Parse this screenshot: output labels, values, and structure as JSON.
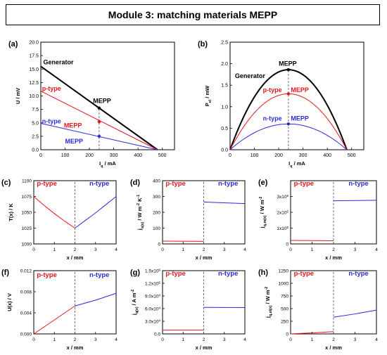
{
  "header": {
    "title": "Module 3: matching materials MEPP"
  },
  "colors": {
    "generator": "#000000",
    "p": "#e8141c",
    "n": "#2b2bd6"
  },
  "chart_data": [
    {
      "id": "a",
      "panel": "(a)",
      "type": "line",
      "xlabel": "I_q / mA",
      "ylabel": "U / mV",
      "xlim": [
        0,
        550
      ],
      "ylim": [
        0,
        20
      ],
      "xticks": [
        0,
        100,
        200,
        300,
        400,
        500
      ],
      "yticks": [
        0.0,
        2.5,
        5.0,
        7.5,
        10.0,
        12.5,
        15.0,
        17.5,
        20.0
      ],
      "ytick_labels": [
        "0.0",
        "2.5",
        "5.0",
        "7.5",
        "10.0",
        "12.5",
        "15.0",
        "17.5",
        "20.0"
      ],
      "series": [
        {
          "name": "Generator",
          "color": "generator",
          "x": [
            0,
            480
          ],
          "y": [
            15.5,
            0
          ],
          "width": 2
        },
        {
          "name": "p-type",
          "color": "p",
          "x": [
            0,
            480
          ],
          "y": [
            10.9,
            0
          ],
          "width": 1
        },
        {
          "name": "n-type",
          "color": "n",
          "x": [
            0,
            480
          ],
          "y": [
            4.9,
            0
          ],
          "width": 1
        }
      ],
      "points": [
        {
          "x": 240,
          "y": 7.75,
          "color": "generator"
        },
        {
          "x": 240,
          "y": 5.2,
          "color": "p"
        },
        {
          "x": 240,
          "y": 2.5,
          "color": "n"
        }
      ],
      "vline": {
        "x": 240,
        "y0": 0,
        "y1": 7.75
      },
      "labels": [
        {
          "text": "Generator",
          "x": 10,
          "y": 15.9,
          "color": "generator",
          "bold": true
        },
        {
          "text": "MEPP",
          "x": 215,
          "y": 8.7,
          "color": "generator",
          "bold": true
        },
        {
          "text": "p-type",
          "x": 5,
          "y": 11.0,
          "color": "p",
          "bold": true
        },
        {
          "text": "MEPP",
          "x": 95,
          "y": 4.1,
          "color": "p",
          "bold": true
        },
        {
          "text": "n-type",
          "x": 5,
          "y": 4.9,
          "color": "n",
          "bold": true
        },
        {
          "text": "MEPP",
          "x": 100,
          "y": 1.2,
          "color": "n",
          "bold": true
        }
      ]
    },
    {
      "id": "b",
      "panel": "(b)",
      "type": "line",
      "xlabel": "I_q / mA",
      "ylabel": "P_el / mW",
      "xlim": [
        0,
        550
      ],
      "ylim": [
        0,
        2.5
      ],
      "xticks": [
        0,
        100,
        200,
        300,
        400,
        500
      ],
      "yticks": [
        0.0,
        0.5,
        1.0,
        1.5,
        2.0,
        2.5
      ],
      "ytick_labels": [
        "0.0",
        "0.5",
        "1.0",
        "1.5",
        "2.0",
        "2.5"
      ],
      "series": [
        {
          "name": "Generator",
          "color": "generator",
          "parabola": {
            "x0": 0,
            "x1": 480,
            "peak": 1.86
          },
          "width": 2
        },
        {
          "name": "p-type",
          "color": "p",
          "parabola": {
            "x0": 0,
            "x1": 480,
            "peak": 1.3
          },
          "width": 1
        },
        {
          "name": "n-type",
          "color": "n",
          "parabola": {
            "x0": 0,
            "x1": 480,
            "peak": 0.6
          },
          "width": 1
        }
      ],
      "points": [
        {
          "x": 240,
          "y": 1.86,
          "color": "generator"
        },
        {
          "x": 240,
          "y": 1.3,
          "color": "p"
        },
        {
          "x": 240,
          "y": 0.6,
          "color": "n"
        }
      ],
      "vline": {
        "x": 240,
        "y0": 0,
        "y1": 1.86
      },
      "labels": [
        {
          "text": "MEPP",
          "x": 200,
          "y": 1.95,
          "color": "generator",
          "bold": true
        },
        {
          "text": "Generator",
          "x": 20,
          "y": 1.67,
          "color": "generator",
          "bold": true
        },
        {
          "text": "p-type",
          "x": 135,
          "y": 1.34,
          "color": "p",
          "bold": true
        },
        {
          "text": "MEPP",
          "x": 250,
          "y": 1.34,
          "color": "p",
          "bold": true
        },
        {
          "text": "n-type",
          "x": 135,
          "y": 0.68,
          "color": "n",
          "bold": true
        },
        {
          "text": "MEPP",
          "x": 250,
          "y": 0.68,
          "color": "n",
          "bold": true
        }
      ]
    },
    {
      "id": "c",
      "panel": "(c)",
      "type": "line",
      "xlabel": "x / mm",
      "ylabel": "T(x) / K",
      "xlim": [
        0,
        4
      ],
      "ylim": [
        1000,
        1100
      ],
      "xticks": [
        0,
        1,
        2,
        3,
        4
      ],
      "yticks": [
        1000,
        1025,
        1050,
        1075,
        1100
      ],
      "ytick_labels": [
        "1000",
        "1025",
        "1050",
        "1075",
        "1100"
      ],
      "series": [
        {
          "name": "p-type",
          "color": "p",
          "x": [
            0,
            0.5,
            1,
            1.5,
            2
          ],
          "y": [
            1075,
            1061,
            1048,
            1036,
            1025
          ],
          "width": 1
        },
        {
          "name": "n-type",
          "color": "n",
          "x": [
            2,
            2.5,
            3,
            3.5,
            4
          ],
          "y": [
            1025,
            1037,
            1049,
            1062,
            1075
          ],
          "width": 1
        }
      ],
      "vline": {
        "x": 2
      },
      "labels": [
        {
          "text": "p-type",
          "x": 0.15,
          "y": 1092,
          "color": "p",
          "bold": true
        },
        {
          "text": "n-type",
          "x": 2.7,
          "y": 1092,
          "color": "n",
          "bold": true
        }
      ]
    },
    {
      "id": "d",
      "panel": "(d)",
      "type": "line",
      "xlabel": "x / mm",
      "ylabel": "j_s(x) / W m^-2 K^-1",
      "xlim": [
        0,
        4
      ],
      "ylim": [
        0,
        400
      ],
      "xticks": [
        0,
        1,
        2,
        3,
        4
      ],
      "yticks": [
        0,
        100,
        200,
        300,
        400
      ],
      "ytick_labels": [
        "0",
        "100",
        "200",
        "300",
        "400"
      ],
      "series": [
        {
          "name": "p-type",
          "color": "p",
          "x": [
            0,
            2
          ],
          "y": [
            18,
            16
          ],
          "width": 1
        },
        {
          "name": "n-type",
          "color": "n",
          "x": [
            2,
            4
          ],
          "y": [
            265,
            255
          ],
          "width": 1
        }
      ],
      "vline": {
        "x": 2
      },
      "labels": [
        {
          "text": "p-type",
          "x": 0.15,
          "y": 368,
          "color": "p",
          "bold": true
        },
        {
          "text": "n-type",
          "x": 2.7,
          "y": 368,
          "color": "n",
          "bold": true
        }
      ]
    },
    {
      "id": "e",
      "panel": "(e)",
      "type": "line",
      "xlabel": "x / mm",
      "ylabel": "j_q,m(x) / W m^-2",
      "xlim": [
        0,
        4
      ],
      "ylim": [
        0,
        400000
      ],
      "xticks": [
        0,
        1,
        2,
        3,
        4
      ],
      "yticks": [
        0,
        100000,
        200000,
        300000
      ],
      "ytick_labels": [
        "0",
        "1x10^5",
        "2x10^5",
        "3x10^5"
      ],
      "series": [
        {
          "name": "p-type",
          "color": "p",
          "x": [
            0,
            2
          ],
          "y": [
            22000,
            20000
          ],
          "width": 1
        },
        {
          "name": "n-type",
          "color": "n",
          "x": [
            2,
            4
          ],
          "y": [
            273000,
            276000
          ],
          "width": 1
        }
      ],
      "vline": {
        "x": 2
      },
      "labels": [
        {
          "text": "p-type",
          "x": 0.15,
          "y": 368000,
          "color": "p",
          "bold": true
        },
        {
          "text": "n-type",
          "x": 2.7,
          "y": 368000,
          "color": "n",
          "bold": true
        }
      ]
    },
    {
      "id": "f",
      "panel": "(f)",
      "type": "line",
      "xlabel": "x / mm",
      "ylabel": "U(x) / V",
      "xlim": [
        0,
        4
      ],
      "ylim": [
        0,
        0.012
      ],
      "xticks": [
        0,
        1,
        2,
        3,
        4
      ],
      "yticks": [
        0.0,
        0.004,
        0.008,
        0.012
      ],
      "ytick_labels": [
        "0.000",
        "0.004",
        "0.008",
        "0.012"
      ],
      "series": [
        {
          "name": "p-type",
          "color": "p",
          "x": [
            0,
            2
          ],
          "y": [
            0,
            0.0053
          ],
          "width": 1
        },
        {
          "name": "n-type",
          "color": "n",
          "x": [
            2,
            3,
            4
          ],
          "y": [
            0.0053,
            0.0064,
            0.0077
          ],
          "width": 1
        }
      ],
      "vline": {
        "x": 2
      },
      "labels": [
        {
          "text": "p-type",
          "x": 0.15,
          "y": 0.0108,
          "color": "p",
          "bold": true
        },
        {
          "text": "n-type",
          "x": 2.7,
          "y": 0.0108,
          "color": "n",
          "bold": true
        }
      ]
    },
    {
      "id": "g",
      "panel": "(g)",
      "type": "line",
      "xlabel": "x / mm",
      "ylabel": "j_q(x) / A m^-2",
      "xlim": [
        0,
        4
      ],
      "ylim": [
        0,
        150000
      ],
      "xticks": [
        0,
        1,
        2,
        3,
        4
      ],
      "yticks": [
        0,
        30000,
        60000,
        90000,
        120000,
        150000
      ],
      "ytick_labels": [
        "0.0",
        "3.0x10^4",
        "6.0x10^4",
        "9.0x10^4",
        "1.2x10^5",
        "1.5x10^5"
      ],
      "series": [
        {
          "name": "p-type",
          "color": "p",
          "x": [
            0,
            2
          ],
          "y": [
            9000,
            9000
          ],
          "width": 1
        },
        {
          "name": "n-type",
          "color": "n",
          "x": [
            2,
            4
          ],
          "y": [
            63000,
            62500
          ],
          "width": 1
        }
      ],
      "vline": {
        "x": 2
      },
      "labels": [
        {
          "text": "p-type",
          "x": 0.15,
          "y": 138000,
          "color": "p",
          "bold": true
        },
        {
          "text": "n-type",
          "x": 2.7,
          "y": 138000,
          "color": "n",
          "bold": true
        }
      ]
    },
    {
      "id": "h",
      "panel": "(h)",
      "type": "line",
      "xlabel": "x / mm",
      "ylabel": "j_q,el(x) / W m^-2",
      "xlim": [
        0,
        4
      ],
      "ylim": [
        0,
        1250
      ],
      "xticks": [
        0,
        1,
        2,
        3,
        4
      ],
      "yticks": [
        0,
        250,
        500,
        750,
        1000,
        1250
      ],
      "ytick_labels": [
        "0",
        "250",
        "500",
        "750",
        "1000",
        "1250"
      ],
      "series": [
        {
          "name": "p-type",
          "color": "p",
          "x": [
            0,
            1,
            2
          ],
          "y": [
            0,
            20,
            45
          ],
          "width": 1
        },
        {
          "name": "n-type",
          "color": "n",
          "x": [
            2,
            3,
            4
          ],
          "y": [
            330,
            395,
            470
          ],
          "width": 1
        }
      ],
      "vline": {
        "x": 2
      },
      "labels": [
        {
          "text": "p-type",
          "x": 0.15,
          "y": 1150,
          "color": "p",
          "bold": true
        },
        {
          "text": "n-type",
          "x": 2.7,
          "y": 1150,
          "color": "n",
          "bold": true
        }
      ]
    }
  ]
}
